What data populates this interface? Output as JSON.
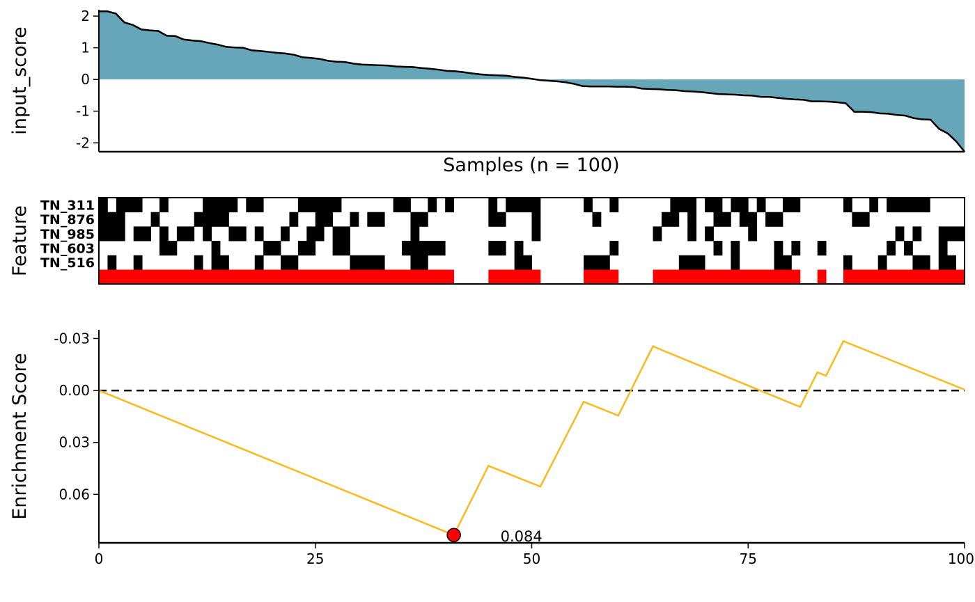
{
  "chart_data": [
    {
      "type": "area",
      "panel": "input-score",
      "ylabel": "input_score",
      "xlabel": "Samples (n = 100)",
      "ylim": [
        -2.28,
        2.2
      ],
      "yticks": [
        2,
        1,
        0,
        -1,
        -2
      ],
      "ytick_labels": [
        "2",
        "1",
        "0",
        "-1",
        "-2"
      ],
      "n": 100,
      "fill_color": "#67a6b8",
      "line_color": "#000000",
      "values": [
        2.15,
        2.15,
        2.08,
        1.8,
        1.72,
        1.58,
        1.55,
        1.53,
        1.38,
        1.37,
        1.26,
        1.23,
        1.21,
        1.15,
        1.1,
        1.03,
        1.01,
        1.0,
        0.92,
        0.9,
        0.87,
        0.84,
        0.82,
        0.78,
        0.7,
        0.68,
        0.65,
        0.59,
        0.56,
        0.55,
        0.5,
        0.47,
        0.46,
        0.45,
        0.44,
        0.41,
        0.4,
        0.39,
        0.36,
        0.34,
        0.31,
        0.27,
        0.26,
        0.23,
        0.19,
        0.16,
        0.14,
        0.13,
        0.12,
        0.08,
        0.06,
        0.02,
        -0.02,
        -0.04,
        -0.06,
        -0.09,
        -0.14,
        -0.21,
        -0.22,
        -0.22,
        -0.22,
        -0.23,
        -0.23,
        -0.24,
        -0.29,
        -0.3,
        -0.31,
        -0.33,
        -0.34,
        -0.37,
        -0.38,
        -0.4,
        -0.43,
        -0.46,
        -0.47,
        -0.48,
        -0.5,
        -0.51,
        -0.55,
        -0.55,
        -0.58,
        -0.61,
        -0.63,
        -0.64,
        -0.69,
        -0.69,
        -0.7,
        -0.72,
        -0.75,
        -1.02,
        -1.02,
        -1.03,
        -1.07,
        -1.08,
        -1.12,
        -1.14,
        -1.22,
        -1.26,
        -1.27,
        -1.56,
        -1.7,
        -1.95,
        -2.28
      ]
    },
    {
      "type": "heatmap",
      "panel": "features",
      "ylabel": "Feature",
      "rows": [
        "TN_311",
        "TN_876",
        "TN_985",
        "TN_603",
        "TN_516"
      ],
      "n": 100,
      "on_color": "#000000",
      "off_color": "#ffffff",
      "on_runs": [
        [
          [
            0,
            1
          ],
          [
            2,
            5
          ],
          [
            7,
            8
          ],
          [
            12,
            16
          ],
          [
            17,
            19
          ],
          [
            23,
            28
          ],
          [
            34,
            36
          ],
          [
            38,
            39
          ],
          [
            40,
            41
          ],
          [
            45,
            46
          ],
          [
            47,
            51
          ],
          [
            56,
            57
          ],
          [
            59,
            60
          ],
          [
            66,
            69
          ],
          [
            70,
            72
          ],
          [
            73,
            75
          ],
          [
            76,
            77
          ],
          [
            79,
            80
          ],
          [
            80,
            81
          ],
          [
            86,
            87
          ],
          [
            89,
            90
          ],
          [
            91,
            96
          ]
        ],
        [
          [
            0,
            3
          ],
          [
            6,
            7
          ],
          [
            11,
            15
          ],
          [
            22,
            23
          ],
          [
            25,
            27
          ],
          [
            29,
            30
          ],
          [
            31,
            33
          ],
          [
            36,
            38
          ],
          [
            45,
            47
          ],
          [
            50,
            51
          ],
          [
            57,
            58
          ],
          [
            65,
            67
          ],
          [
            68,
            69
          ],
          [
            71,
            73
          ],
          [
            74,
            76
          ],
          [
            77,
            79
          ],
          [
            87,
            89
          ]
        ],
        [
          [
            0,
            3
          ],
          [
            4,
            6
          ],
          [
            7,
            8
          ],
          [
            9,
            11
          ],
          [
            12,
            13
          ],
          [
            15,
            17
          ],
          [
            18,
            19
          ],
          [
            21,
            22
          ],
          [
            24,
            26
          ],
          [
            27,
            29
          ],
          [
            36,
            37
          ],
          [
            50,
            51
          ],
          [
            64,
            65
          ],
          [
            68,
            69
          ],
          [
            70,
            71
          ],
          [
            75,
            76
          ],
          [
            92,
            93
          ],
          [
            94,
            95
          ],
          [
            97,
            100
          ]
        ],
        [
          [
            7,
            9
          ],
          [
            13,
            14
          ],
          [
            19,
            21
          ],
          [
            23,
            25
          ],
          [
            27,
            29
          ],
          [
            35,
            40
          ],
          [
            45,
            47
          ],
          [
            48,
            49
          ],
          [
            59,
            60
          ],
          [
            71,
            72
          ],
          [
            73,
            74
          ],
          [
            78,
            79
          ],
          [
            80,
            81
          ],
          [
            83,
            84
          ],
          [
            91,
            92
          ],
          [
            93,
            94
          ],
          [
            97,
            98
          ]
        ],
        [
          [
            1,
            2
          ],
          [
            4,
            5
          ],
          [
            11,
            12
          ],
          [
            13,
            15
          ],
          [
            18,
            19
          ],
          [
            21,
            23
          ],
          [
            29,
            33
          ],
          [
            36,
            38
          ],
          [
            48,
            50
          ],
          [
            56,
            59
          ],
          [
            67,
            70
          ],
          [
            73,
            74
          ],
          [
            78,
            80
          ],
          [
            86,
            87
          ],
          [
            90,
            91
          ],
          [
            94,
            96
          ],
          [
            97,
            99
          ]
        ]
      ],
      "summary_color": "#ff0000",
      "summary_runs": [
        [
          0,
          41
        ],
        [
          45,
          51
        ],
        [
          56,
          60
        ],
        [
          64,
          81
        ],
        [
          83,
          84
        ],
        [
          86,
          100
        ]
      ]
    },
    {
      "type": "line",
      "panel": "enrichment",
      "ylabel": "Enrichment Score",
      "xlim": [
        0,
        100
      ],
      "xticks": [
        0,
        25,
        50,
        75,
        100
      ],
      "xtick_labels": [
        "0",
        "25",
        "50",
        "75",
        "100"
      ],
      "ylim": [
        -0.035,
        0.088
      ],
      "yticks": [
        -0.03,
        0.0,
        0.03,
        0.06
      ],
      "ytick_labels": [
        "-0.03",
        "0.00",
        "0.03",
        "0.06"
      ],
      "y_inverted": true,
      "line_color": "#fbb91b",
      "zero_line": "dashed",
      "points": [
        [
          0,
          0.0
        ],
        [
          41,
          0.0835
        ],
        [
          45,
          0.0435
        ],
        [
          51,
          0.0555
        ],
        [
          56,
          0.0065
        ],
        [
          60,
          0.0145
        ],
        [
          64,
          -0.0255
        ],
        [
          81,
          0.0095
        ],
        [
          83,
          -0.0105
        ],
        [
          84,
          -0.0085
        ],
        [
          86,
          -0.0285
        ],
        [
          100,
          -0.0005
        ]
      ],
      "peak": {
        "x": 41,
        "y": 0.0835,
        "label": "0.084",
        "color": "#ff0000"
      }
    }
  ]
}
